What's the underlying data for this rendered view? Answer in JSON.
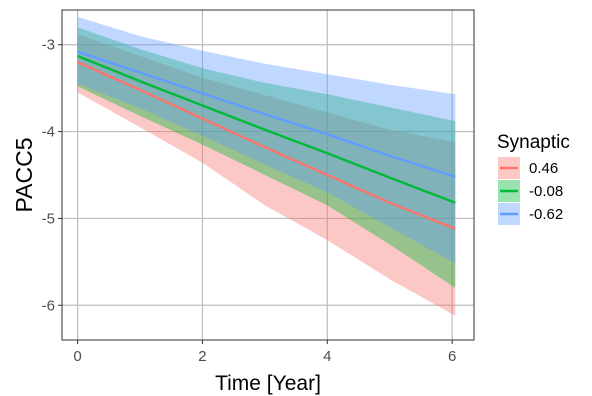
{
  "chart_data": {
    "type": "line",
    "title": "",
    "xlabel": "Time [Year]",
    "ylabel": "PACC5",
    "xlim": [
      -0.25,
      6.35
    ],
    "ylim": [
      -6.4,
      -2.6
    ],
    "x_ticks": [
      0,
      2,
      4,
      6
    ],
    "y_ticks": [
      -3,
      -4,
      -5,
      -6
    ],
    "x_tick_labels": [
      "0",
      "2",
      "4",
      "6"
    ],
    "y_tick_labels": [
      "-3",
      "-4",
      "-5",
      "-6"
    ],
    "grid": true,
    "legend": {
      "title": "Synaptic",
      "position": "right"
    },
    "x": [
      0,
      1,
      2,
      3,
      4,
      5,
      6.05
    ],
    "series": [
      {
        "name": "0.46",
        "color": "#F8766D",
        "values": [
          -3.2,
          -3.52,
          -3.85,
          -4.18,
          -4.5,
          -4.82,
          -5.12
        ],
        "lower": [
          -3.55,
          -3.95,
          -4.36,
          -4.85,
          -5.25,
          -5.7,
          -6.12
        ],
        "upper": [
          -2.88,
          -3.13,
          -3.38,
          -3.58,
          -3.78,
          -3.98,
          -4.12
        ]
      },
      {
        "name": "-0.08",
        "color": "#00BA38",
        "values": [
          -3.13,
          -3.42,
          -3.7,
          -3.98,
          -4.25,
          -4.53,
          -4.82
        ],
        "lower": [
          -3.48,
          -3.82,
          -4.15,
          -4.5,
          -4.85,
          -5.3,
          -5.8
        ],
        "upper": [
          -2.8,
          -3.05,
          -3.27,
          -3.44,
          -3.57,
          -3.72,
          -3.88
        ]
      },
      {
        "name": "-0.62",
        "color": "#619CFF",
        "values": [
          -3.08,
          -3.32,
          -3.56,
          -3.8,
          -4.03,
          -4.28,
          -4.52
        ],
        "lower": [
          -3.45,
          -3.73,
          -4.05,
          -4.38,
          -4.7,
          -5.1,
          -5.52
        ],
        "upper": [
          -2.68,
          -2.9,
          -3.07,
          -3.22,
          -3.34,
          -3.46,
          -3.57
        ]
      }
    ]
  }
}
